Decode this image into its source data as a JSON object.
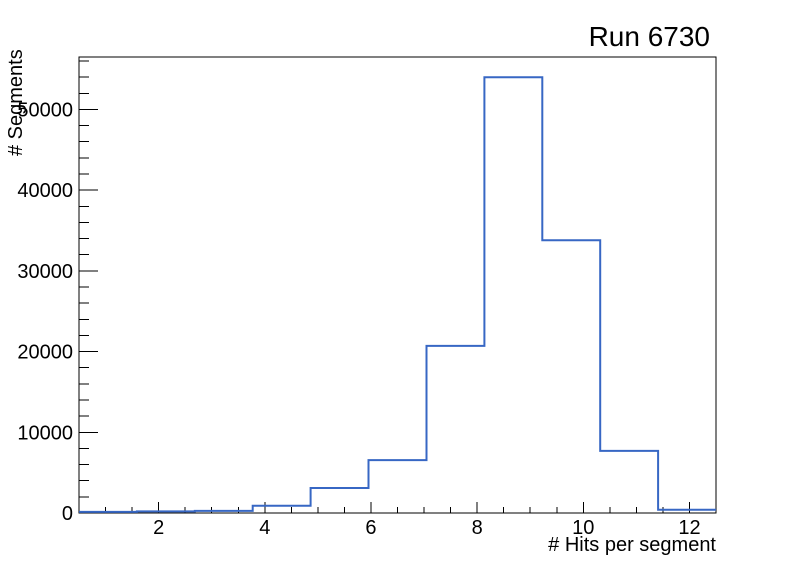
{
  "window": {
    "background_color": "#ffffff"
  },
  "chart_data": {
    "type": "bar",
    "subtype": "step-histogram",
    "title": "Run 6730",
    "xlabel": "# Hits per segment",
    "ylabel": "# Segments",
    "bin_edges": [
      0.5,
      1.5909,
      2.6818,
      3.7727,
      4.8636,
      5.9545,
      7.0455,
      8.1364,
      9.2273,
      10.3182,
      11.4091,
      12.5
    ],
    "values": [
      140,
      200,
      260,
      900,
      3100,
      6550,
      20700,
      54000,
      33800,
      7700,
      400
    ],
    "xlim": [
      0.5,
      12.5
    ],
    "ylim": [
      0,
      56500
    ],
    "x_major_ticks": [
      2,
      4,
      6,
      8,
      10,
      12
    ],
    "x_major_tick_labels": [
      "2",
      "4",
      "6",
      "8",
      "10",
      "12"
    ],
    "x_minor_step": 0.5,
    "y_major_step": 10000,
    "y_minor_step": 2000,
    "y_major_tick_labels": [
      "0",
      "10000",
      "20000",
      "30000",
      "40000",
      "50000"
    ],
    "grid": false,
    "legend": null,
    "line_color": "#3767c4",
    "axis_color": "#000000",
    "text_color": "#000000"
  }
}
